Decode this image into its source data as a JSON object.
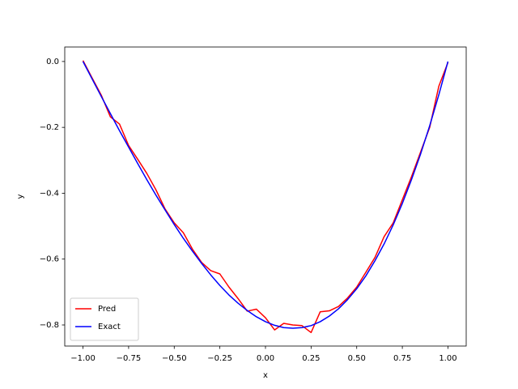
{
  "chart_data": {
    "type": "line",
    "x_label": "x",
    "y_label": "y",
    "x": [
      -1,
      -0.95,
      -0.9,
      -0.85,
      -0.8,
      -0.75,
      -0.7,
      -0.65,
      -0.6,
      -0.55,
      -0.5,
      -0.45,
      -0.4,
      -0.35,
      -0.3,
      -0.25,
      -0.2,
      -0.15,
      -0.1,
      -0.05,
      0,
      0.05,
      0.1,
      0.15,
      0.2,
      0.25,
      0.3,
      0.35,
      0.4,
      0.45,
      0.5,
      0.55,
      0.6,
      0.65,
      0.7,
      0.75,
      0.8,
      0.85,
      0.9,
      0.95,
      1
    ],
    "series": [
      {
        "name": "Pred",
        "color": "#ff0000",
        "values": [
          0.003,
          -0.05,
          -0.102,
          -0.168,
          -0.19,
          -0.255,
          -0.297,
          -0.34,
          -0.39,
          -0.448,
          -0.49,
          -0.52,
          -0.57,
          -0.61,
          -0.635,
          -0.645,
          -0.685,
          -0.72,
          -0.758,
          -0.752,
          -0.778,
          -0.815,
          -0.795,
          -0.8,
          -0.802,
          -0.823,
          -0.76,
          -0.757,
          -0.744,
          -0.718,
          -0.685,
          -0.64,
          -0.595,
          -0.532,
          -0.49,
          -0.42,
          -0.35,
          -0.275,
          -0.2,
          -0.075,
          -0.003
        ]
      },
      {
        "name": "Exact",
        "color": "#0000ff",
        "values": [
          0,
          -0.053,
          -0.106,
          -0.158,
          -0.21,
          -0.26,
          -0.31,
          -0.359,
          -0.406,
          -0.451,
          -0.495,
          -0.537,
          -0.576,
          -0.613,
          -0.648,
          -0.68,
          -0.709,
          -0.734,
          -0.756,
          -0.775,
          -0.79,
          -0.801,
          -0.808,
          -0.81,
          -0.808,
          -0.802,
          -0.79,
          -0.773,
          -0.751,
          -0.723,
          -0.69,
          -0.651,
          -0.605,
          -0.554,
          -0.496,
          -0.431,
          -0.359,
          -0.281,
          -0.195,
          -0.101,
          0
        ]
      }
    ],
    "xlim": [
      -1.1,
      1.1
    ],
    "ylim": [
      -0.864,
      0.044
    ],
    "xticks": [
      {
        "value": -1,
        "label": "−1.00"
      },
      {
        "value": -0.75,
        "label": "−0.75"
      },
      {
        "value": -0.5,
        "label": "−0.50"
      },
      {
        "value": -0.25,
        "label": "−0.25"
      },
      {
        "value": 0,
        "label": "0.00"
      },
      {
        "value": 0.25,
        "label": "0.25"
      },
      {
        "value": 0.5,
        "label": "0.50"
      },
      {
        "value": 0.75,
        "label": "0.75"
      },
      {
        "value": 1,
        "label": "1.00"
      }
    ],
    "yticks": [
      {
        "value": 0,
        "label": "0.0"
      },
      {
        "value": -0.2,
        "label": "−0.2"
      },
      {
        "value": -0.4,
        "label": "−0.4"
      },
      {
        "value": -0.6,
        "label": "−0.6"
      },
      {
        "value": -0.8,
        "label": "−0.8"
      }
    ],
    "legend": "lower left"
  }
}
